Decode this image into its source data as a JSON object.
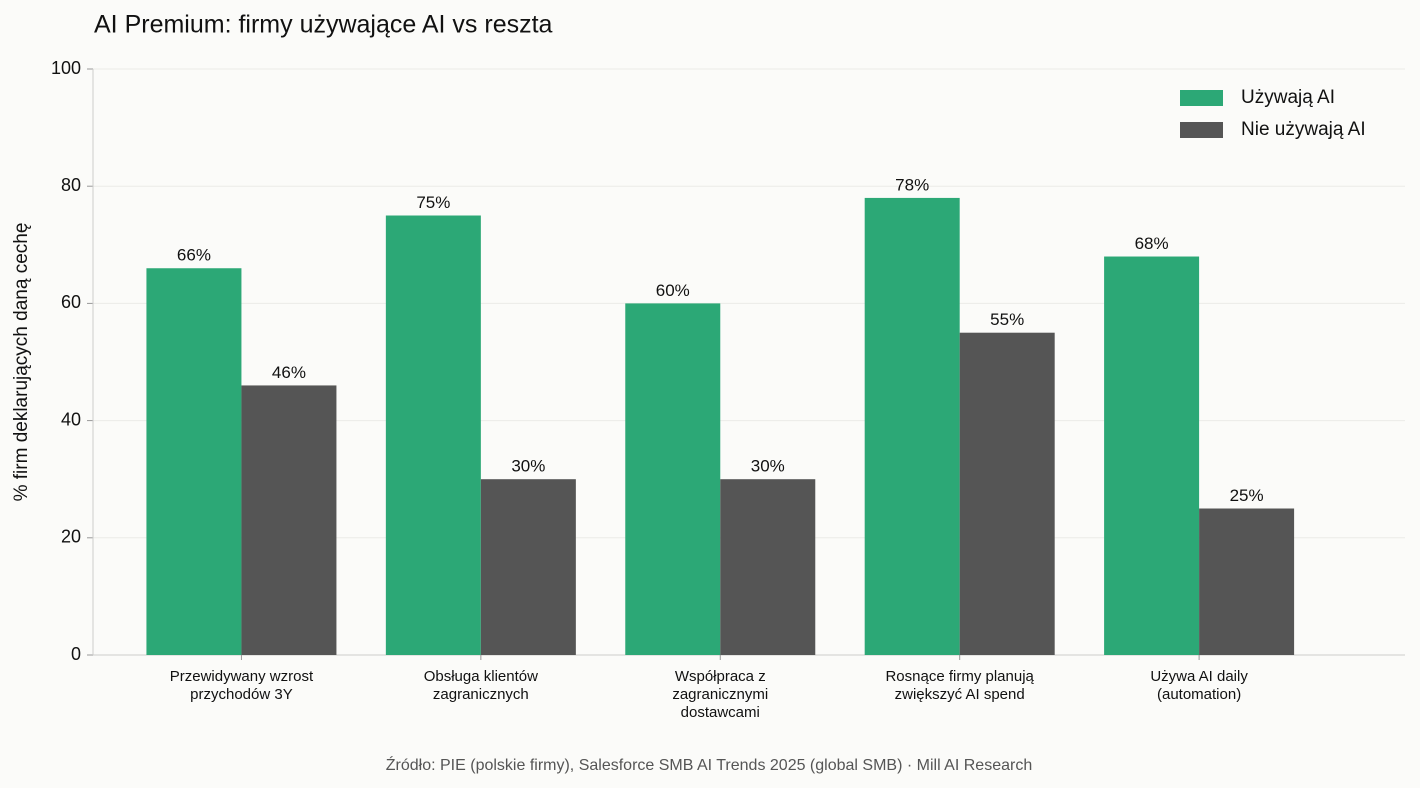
{
  "chart_data": {
    "type": "bar",
    "title": "AI Premium: firmy używające AI vs reszta",
    "ylabel": "% firm deklarujących daną cechę",
    "source": "Źródło: PIE (polskie firmy), Salesforce SMB AI Trends 2025 (global SMB) · Mill AI Research",
    "categories": [
      "Przewidywany wzrost\nprzychodów 3Y",
      "Obsługa klientów\nzagranicznych",
      "Współpraca z\nzagranicznymi\ndostawcami",
      "Rosnące firmy planują\nzwiększyć AI spend",
      "Używa AI daily\n(automation)"
    ],
    "series": [
      {
        "name": "Używają AI",
        "color": "#2ca876",
        "values": [
          66,
          75,
          60,
          78,
          68
        ],
        "value_labels": [
          "66%",
          "75%",
          "60%",
          "78%",
          "68%"
        ]
      },
      {
        "name": "Nie używają AI",
        "color": "#555555",
        "values": [
          46,
          30,
          30,
          55,
          25
        ],
        "value_labels": [
          "46%",
          "30%",
          "30%",
          "55%",
          "25%"
        ]
      }
    ],
    "ylim": [
      0,
      100
    ],
    "yticks": [
      0,
      20,
      40,
      60,
      80,
      100
    ],
    "grid": true,
    "legend": "upper right"
  }
}
